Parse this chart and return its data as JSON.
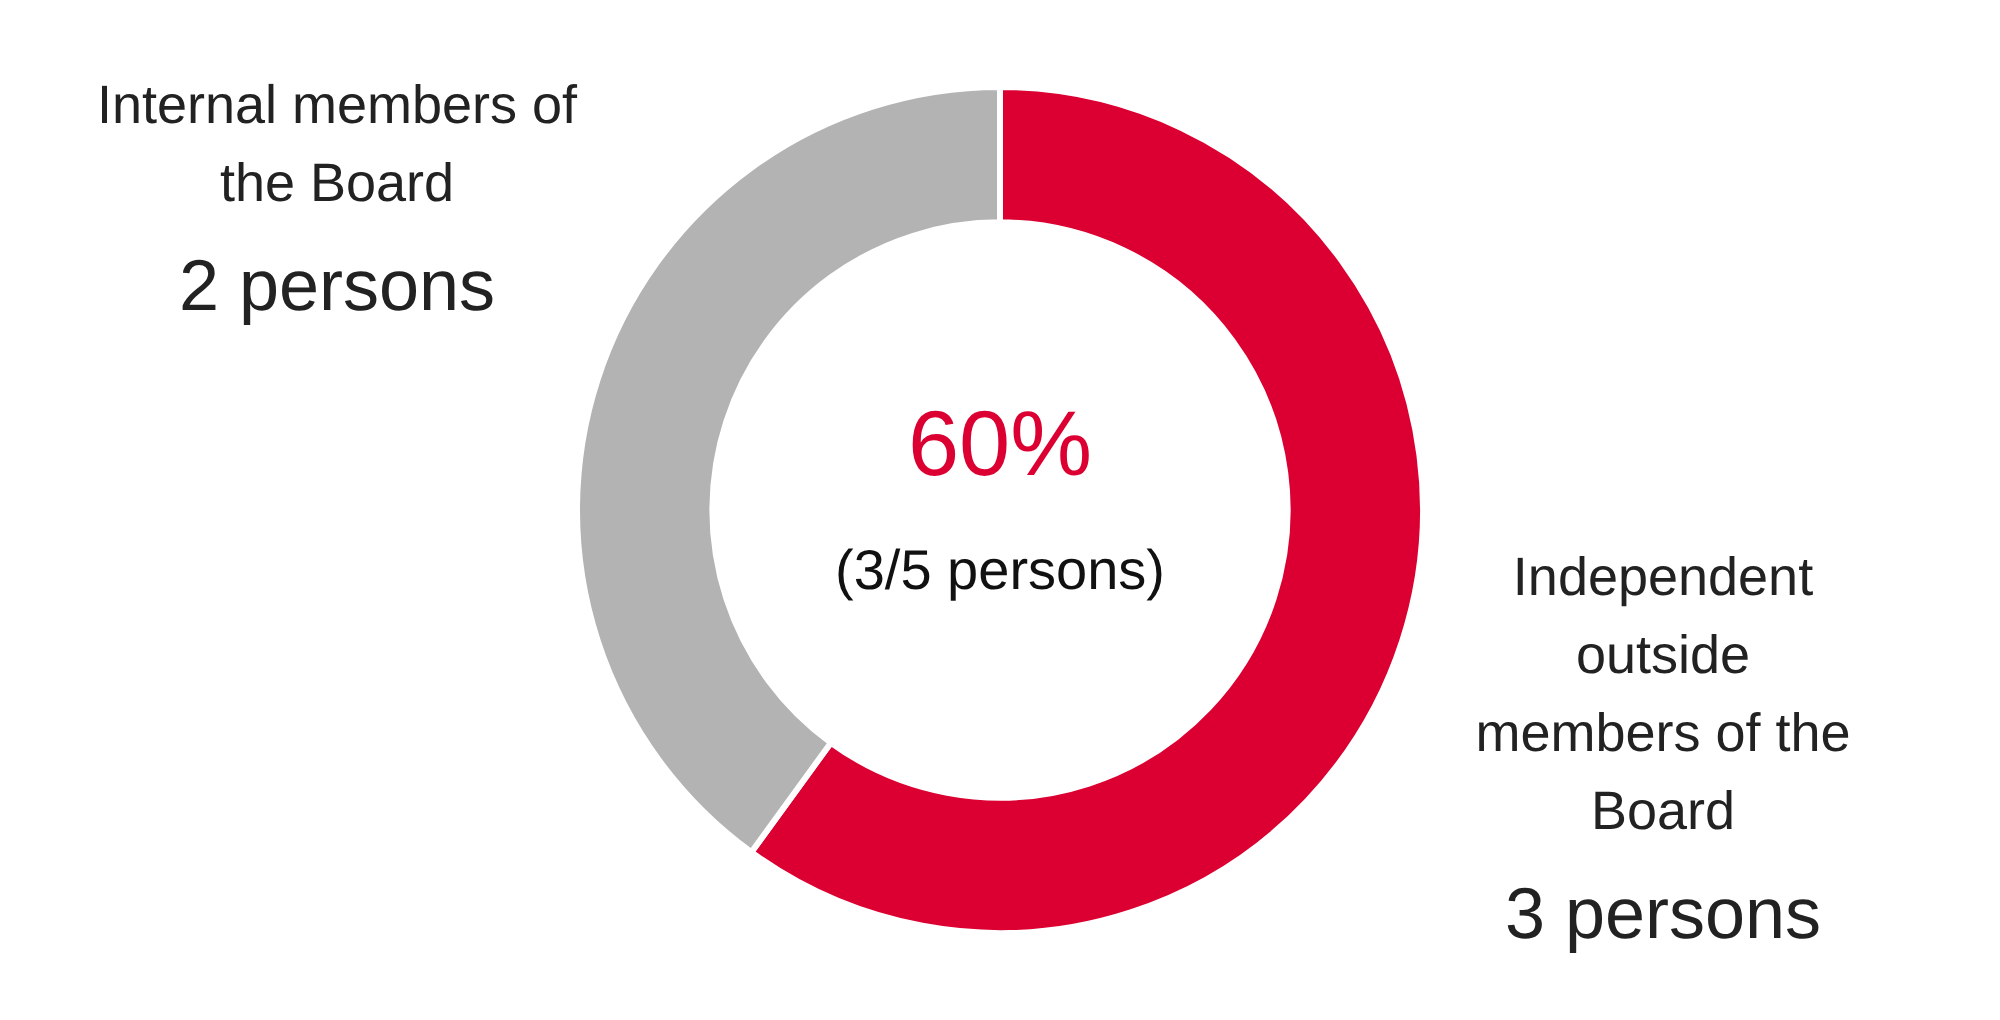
{
  "chart_data": {
    "type": "donut",
    "categories": [
      "Independent outside members of the Board",
      "Internal members of the Board"
    ],
    "values": [
      3,
      2
    ],
    "colors": [
      "#dc0032",
      "#b3b3b3"
    ],
    "value_labels": [
      "3 persons",
      "2 persons"
    ],
    "annotations": [
      "60%",
      "(3/5 persons)"
    ],
    "legend": false
  }
}
